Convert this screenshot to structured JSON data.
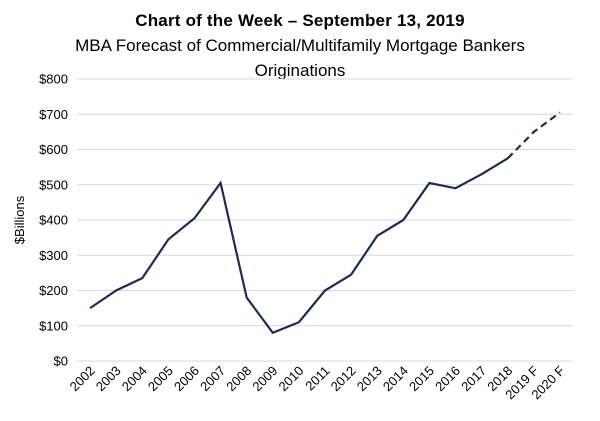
{
  "header": {
    "title": "Chart of the Week – September 13, 2019",
    "subtitle": "MBA Forecast of Commercial/Multifamily Mortgage Bankers Originations"
  },
  "chart_data": {
    "type": "line",
    "title": "Chart of the Week – September 13, 2019",
    "subtitle": "MBA Forecast of Commercial/Multifamily Mortgage Bankers Originations",
    "ylabel": "$Billions",
    "xlabel": "",
    "ylim": [
      0,
      800
    ],
    "grid": "horizontal",
    "legend_position": "none",
    "yticks": [
      {
        "value": 0,
        "label": "$0"
      },
      {
        "value": 100,
        "label": "$100"
      },
      {
        "value": 200,
        "label": "$200"
      },
      {
        "value": 300,
        "label": "$300"
      },
      {
        "value": 400,
        "label": "$400"
      },
      {
        "value": 500,
        "label": "$500"
      },
      {
        "value": 600,
        "label": "$600"
      },
      {
        "value": 700,
        "label": "$700"
      },
      {
        "value": 800,
        "label": "$800"
      }
    ],
    "categories": [
      "2002",
      "2003",
      "2004",
      "2005",
      "2006",
      "2007",
      "2008",
      "2009",
      "2010",
      "2011",
      "2012",
      "2013",
      "2014",
      "2015",
      "2016",
      "2017",
      "2018",
      "2019 F",
      "2020 F"
    ],
    "series": [
      {
        "name": "Commercial/Multifamily Mortgage Bankers Originations",
        "values": [
          150,
          200,
          235,
          345,
          405,
          505,
          180,
          80,
          110,
          200,
          245,
          355,
          400,
          505,
          490,
          530,
          575,
          650,
          705
        ],
        "forecast_start_index": 16,
        "forecast_style": "dashed"
      }
    ],
    "colors": {
      "line": "#1e2c52",
      "gridline": "#d9d9d9",
      "text": "#000000",
      "background": "#ffffff"
    }
  }
}
